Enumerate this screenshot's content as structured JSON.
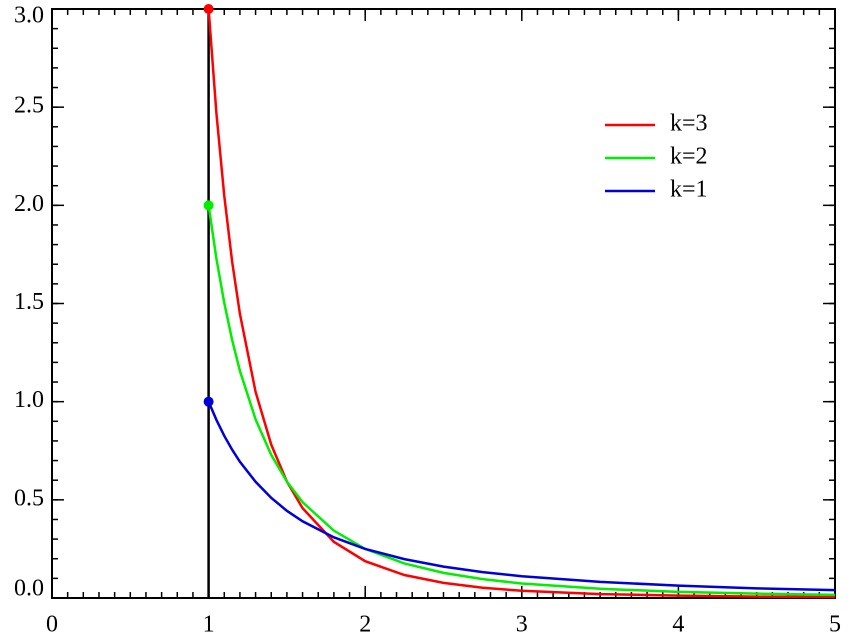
{
  "chart_data": {
    "type": "line",
    "x": [
      1,
      1.05,
      1.1,
      1.15,
      1.2,
      1.3,
      1.4,
      1.5,
      1.6,
      1.8,
      2,
      2.25,
      2.5,
      2.75,
      3,
      3.5,
      4,
      4.5,
      5
    ],
    "series": [
      {
        "name": "k=3",
        "color": "#ff0000",
        "values": [
          3,
          2.468,
          2.049,
          1.715,
          1.447,
          1.05,
          0.781,
          0.593,
          0.458,
          0.286,
          0.1875,
          0.117,
          0.077,
          0.052,
          0.037,
          0.02,
          0.012,
          0.0073,
          0.0048
        ]
      },
      {
        "name": "k=2",
        "color": "#00ee00",
        "values": [
          2,
          1.728,
          1.503,
          1.315,
          1.157,
          0.91,
          0.729,
          0.593,
          0.488,
          0.343,
          0.25,
          0.176,
          0.128,
          0.096,
          0.074,
          0.047,
          0.031,
          0.022,
          0.016
        ]
      },
      {
        "name": "k=1",
        "color": "#0000dd",
        "values": [
          1,
          0.907,
          0.826,
          0.756,
          0.694,
          0.592,
          0.51,
          0.444,
          0.391,
          0.309,
          0.25,
          0.198,
          0.16,
          0.132,
          0.111,
          0.082,
          0.063,
          0.049,
          0.04
        ]
      }
    ],
    "xlim": [
      0,
      5
    ],
    "xticks": [
      0,
      1,
      2,
      3,
      4,
      5
    ],
    "ylim": [
      0,
      3
    ],
    "yticks": [
      {
        "value": 0,
        "label": "0.0"
      },
      0.5,
      {
        "value": 1,
        "label": "1.0"
      },
      1.5,
      {
        "value": 2,
        "label": "2.0"
      },
      2.5,
      {
        "value": 3,
        "label": "3.0"
      }
    ],
    "legend": "upper-right"
  }
}
